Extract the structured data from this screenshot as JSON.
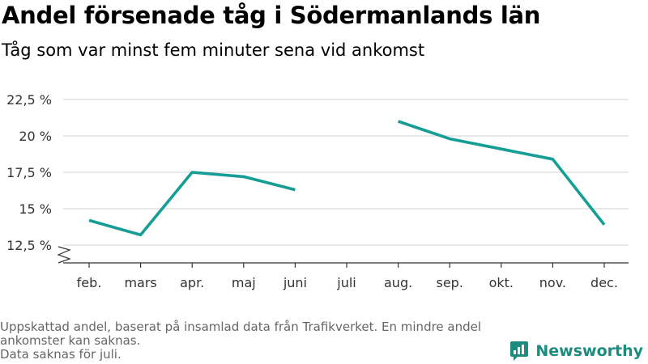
{
  "header": {
    "title": "Andel försenade tåg i Södermanlands län",
    "subtitle": "Tåg som var minst fem minuter sena vid ankomst"
  },
  "colors": {
    "series": "#169e96",
    "grid": "#d9d9d9",
    "axis": "#333333",
    "brand": "#1b8c7e",
    "footer": "#666666"
  },
  "chart_data": {
    "type": "line",
    "categories": [
      "feb.",
      "mars",
      "apr.",
      "maj",
      "juni",
      "juli",
      "aug.",
      "sep.",
      "okt.",
      "nov.",
      "dec."
    ],
    "series": [
      {
        "values": [
          14.2,
          13.2,
          17.5,
          17.2,
          16.3,
          null,
          21.0,
          19.8,
          19.1,
          18.4,
          13.9
        ]
      }
    ],
    "ylim": [
      12.5,
      22.5
    ],
    "yticks": [
      12.5,
      15,
      17.5,
      20,
      22.5
    ],
    "ytick_labels": [
      "12,5 %",
      "15 %",
      "17,5 %",
      "20 %",
      "22,5 %"
    ],
    "y_axis_break": true,
    "grid": true,
    "xlabel": "",
    "ylabel": ""
  },
  "footer": {
    "lines": [
      "Uppskattad andel, baserat på insamlad data från Trafikverket. En mindre andel",
      "ankomster kan saknas.",
      "Data saknas för juli."
    ]
  },
  "brand": {
    "name": "Newsworthy",
    "icon": "newsworthy-logo-icon"
  }
}
